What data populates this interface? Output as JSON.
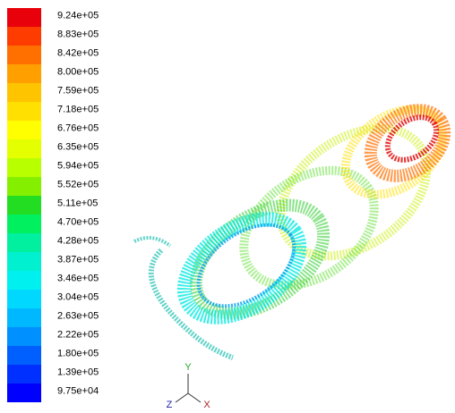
{
  "colorbar": {
    "labels": [
      "9.24e+05",
      "8.83e+05",
      "8.42e+05",
      "8.00e+05",
      "7.59e+05",
      "7.18e+05",
      "6.76e+05",
      "6.35e+05",
      "5.94e+05",
      "5.52e+05",
      "5.11e+05",
      "4.70e+05",
      "4.28e+05",
      "3.87e+05",
      "3.46e+05",
      "3.04e+05",
      "2.63e+05",
      "2.22e+05",
      "1.80e+05",
      "1.39e+05",
      "9.75e+04"
    ],
    "colors": [
      "#e8000b",
      "#ff3c00",
      "#ff7000",
      "#ffa000",
      "#ffc400",
      "#ffe000",
      "#ffff00",
      "#e4ff00",
      "#b8ff00",
      "#84f000",
      "#22dd22",
      "#00f060",
      "#00f0a0",
      "#00f0d0",
      "#00f0f0",
      "#00d8ff",
      "#00b8ff",
      "#0090ff",
      "#0060ff",
      "#0030ff",
      "#0000ff"
    ]
  },
  "axes": {
    "y": "Y",
    "z": "Z",
    "x": "X"
  }
}
